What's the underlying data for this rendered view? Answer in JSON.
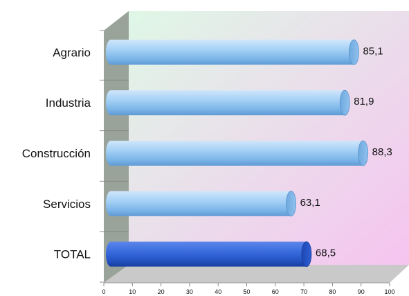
{
  "chart_data": {
    "type": "bar",
    "orientation": "horizontal",
    "style": "3d-cylinder",
    "categories": [
      "Agrario",
      "Industria",
      "Construcción",
      "Servicios",
      "TOTAL"
    ],
    "values": [
      85.1,
      81.9,
      88.3,
      63.1,
      68.5
    ],
    "value_labels": [
      "85,1",
      "81,9",
      "88,3",
      "63,1",
      "68,5"
    ],
    "title": "",
    "xlabel": "",
    "ylabel": "",
    "xlim": [
      0,
      100
    ],
    "ticks": [
      0,
      10,
      20,
      30,
      40,
      50,
      60,
      70,
      80,
      90,
      100
    ],
    "tick_labels": [
      "0",
      "10",
      "20",
      "30",
      "40",
      "50",
      "60",
      "70",
      "80",
      "90",
      "100"
    ],
    "grid": false,
    "legend": "none",
    "colors": {
      "bar": "#8ec3f0",
      "bar_highlight": "#2f62d8",
      "wall_gradient_start": "#dff7e6",
      "wall_gradient_end": "#f6c4f0",
      "side_wall": "#9aa39a",
      "floor": "#c9c9c9"
    },
    "highlighted_category": "TOTAL"
  }
}
